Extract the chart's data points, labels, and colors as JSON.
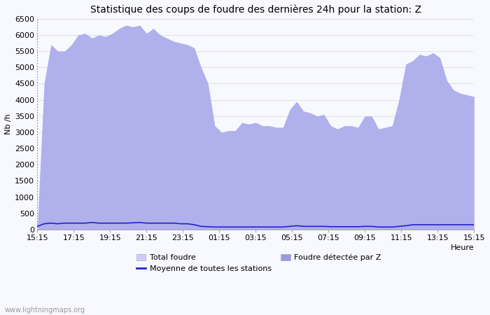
{
  "title": "Statistique des coups de foudre des dernières 24h pour la station: Z",
  "ylabel": "Nb /h",
  "xlabel": "Heure",
  "watermark": "www.lightningmaps.org",
  "ylim": [
    0,
    6500
  ],
  "yticks": [
    0,
    500,
    1000,
    1500,
    2000,
    2500,
    3000,
    3500,
    4000,
    4500,
    5000,
    5500,
    6000,
    6500
  ],
  "x_labels": [
    "15:15",
    "17:15",
    "19:15",
    "21:15",
    "23:15",
    "01:15",
    "03:15",
    "05:15",
    "07:15",
    "09:15",
    "11:15",
    "13:15",
    "15:15"
  ],
  "color_total": "#ccccff",
  "color_station": "#9999dd",
  "color_line": "#2222cc",
  "bg_color": "#f8f8ff",
  "grid_color": "#d8d8d8",
  "legend_total": "Total foudre",
  "legend_station": "Foudre détectée par Z",
  "legend_line": "Moyenne de toutes les stations",
  "title_fontsize": 10,
  "axis_fontsize": 8,
  "tick_fontsize": 8,
  "total_foudre": [
    50,
    4500,
    5700,
    5500,
    5500,
    5700,
    6000,
    6050,
    5900,
    6000,
    5950,
    6050,
    6200,
    6300,
    6250,
    6300,
    6050,
    6200,
    6000,
    5900,
    5800,
    5750,
    5700,
    5600,
    5000,
    4500,
    3200,
    3000,
    3050,
    3050,
    3300,
    3250,
    3300,
    3200,
    3200,
    3150,
    3150,
    3700,
    3950,
    3650,
    3600,
    3500,
    3550,
    3200,
    3100,
    3200,
    3200,
    3150,
    3500,
    3500,
    3100,
    3150,
    3200,
    4000,
    5100,
    5200,
    5400,
    5350,
    5450,
    5300,
    4600,
    4300,
    4200,
    4150,
    4100
  ],
  "foudre_station": [
    50,
    4500,
    5700,
    5500,
    5500,
    5700,
    6000,
    6050,
    5900,
    6000,
    5950,
    6050,
    6200,
    6300,
    6250,
    6300,
    6050,
    6200,
    6000,
    5900,
    5800,
    5750,
    5700,
    5600,
    5000,
    4500,
    3200,
    3000,
    3050,
    3050,
    3300,
    3250,
    3300,
    3200,
    3200,
    3150,
    3150,
    3700,
    3950,
    3650,
    3600,
    3500,
    3550,
    3200,
    3100,
    3200,
    3200,
    3150,
    3500,
    3500,
    3100,
    3150,
    3200,
    4000,
    5100,
    5200,
    5400,
    5350,
    5450,
    5300,
    4600,
    4300,
    4200,
    4150,
    4100
  ],
  "moyenne": [
    100,
    180,
    200,
    180,
    200,
    200,
    200,
    200,
    220,
    200,
    200,
    200,
    200,
    200,
    210,
    220,
    200,
    200,
    200,
    200,
    200,
    180,
    180,
    150,
    100,
    90,
    80,
    80,
    80,
    80,
    80,
    80,
    80,
    80,
    80,
    80,
    80,
    100,
    120,
    100,
    100,
    100,
    100,
    90,
    90,
    90,
    90,
    90,
    100,
    100,
    80,
    80,
    80,
    100,
    120,
    150,
    150,
    150,
    150,
    150,
    150,
    150,
    150,
    150,
    150
  ]
}
